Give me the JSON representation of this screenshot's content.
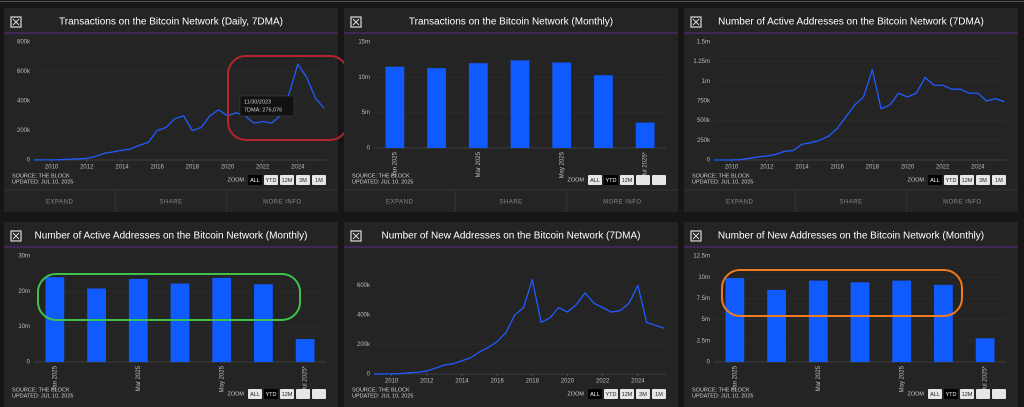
{
  "ui": {
    "source": "SOURCE: THE BLOCK",
    "updated": "UPDATED: JUL 10, 2025",
    "zoom": "ZOOM",
    "buttons": [
      "ALL",
      "YTD",
      "12M",
      "3M",
      "1M"
    ],
    "footer": [
      "EXPAND",
      "SHARE",
      "MORE INFO"
    ]
  },
  "chart_data": [
    {
      "type": "line",
      "title": "Transactions on the Bitcoin Network (Daily, 7DMA)",
      "color": "#1f5cff",
      "x": [
        2009,
        2009.5,
        2010,
        2010.5,
        2011,
        2011.5,
        2012,
        2012.5,
        2013,
        2013.5,
        2014,
        2014.5,
        2015,
        2015.5,
        2016,
        2016.5,
        2017,
        2017.5,
        2018,
        2018.5,
        2019,
        2019.5,
        2020,
        2020.5,
        2021,
        2021.5,
        2022,
        2022.5,
        2023,
        2023.5,
        2024,
        2024.5,
        2025,
        2025.5
      ],
      "values": [
        500,
        1000,
        1000,
        2000,
        5000,
        8000,
        10000,
        25000,
        45000,
        55000,
        65000,
        75000,
        100000,
        120000,
        200000,
        220000,
        280000,
        300000,
        200000,
        220000,
        300000,
        340000,
        300000,
        320000,
        300000,
        250000,
        260000,
        250000,
        300000,
        450000,
        650000,
        560000,
        420000,
        350000
      ],
      "xlim": [
        2009,
        2025.6
      ],
      "xticks": [
        2010,
        2012,
        2014,
        2016,
        2018,
        2020,
        2022,
        2024
      ],
      "ylim": [
        0,
        800000
      ],
      "yticks": [
        0,
        {
          "value": 200000,
          "label": "200k"
        },
        {
          "value": 400000,
          "label": "400k"
        },
        {
          "value": 600000,
          "label": "600k"
        },
        {
          "value": 800000,
          "label": "800k"
        }
      ],
      "annotations": [
        "11/30/2023",
        "7DMA: 276,076"
      ]
    },
    {
      "type": "bar",
      "title": "Transactions on the Bitcoin Network (Monthly)",
      "color": "#0f5bff",
      "categories": [
        "Jan 2025",
        null,
        "Mar 2025",
        null,
        "May 2025",
        null,
        "Jul 2025*"
      ],
      "values": [
        11500000,
        11300000,
        12000000,
        12400000,
        12100000,
        10300000,
        3600000
      ],
      "ylim": [
        0,
        15000000
      ],
      "yticks": [
        0,
        {
          "value": 5000000,
          "label": "5m"
        },
        {
          "value": 10000000,
          "label": "10m"
        },
        {
          "value": 15000000,
          "label": "15m"
        }
      ]
    },
    {
      "type": "line",
      "title": "Number of Active Addresses on the Bitcoin Network (7DMA)",
      "color": "#1f5cff",
      "x": [
        2009,
        2009.5,
        2010,
        2010.5,
        2011,
        2011.5,
        2012,
        2012.5,
        2013,
        2013.5,
        2014,
        2014.5,
        2015,
        2015.5,
        2016,
        2016.5,
        2017,
        2017.5,
        2018,
        2018.5,
        2019,
        2019.5,
        2020,
        2020.5,
        2021,
        2021.5,
        2022,
        2022.5,
        2023,
        2023.5,
        2024,
        2024.5,
        2025,
        2025.5
      ],
      "values": [
        0,
        0,
        1000,
        5000,
        20000,
        40000,
        50000,
        70000,
        110000,
        120000,
        200000,
        220000,
        250000,
        300000,
        400000,
        550000,
        700000,
        800000,
        1150000,
        650000,
        700000,
        850000,
        800000,
        850000,
        1050000,
        950000,
        950000,
        900000,
        900000,
        850000,
        850000,
        750000,
        780000,
        740000
      ],
      "xlim": [
        2009,
        2025.6
      ],
      "xticks": [
        2010,
        2012,
        2014,
        2016,
        2018,
        2020,
        2022,
        2024
      ],
      "ylim": [
        0,
        1500000
      ],
      "yticks": [
        0,
        {
          "value": 250000,
          "label": "250k"
        },
        {
          "value": 500000,
          "label": "500k"
        },
        {
          "value": 750000,
          "label": "750k"
        },
        {
          "value": 1000000,
          "label": "1m"
        },
        {
          "value": 1250000,
          "label": "1.25m"
        },
        {
          "value": 1500000,
          "label": "1.5m"
        }
      ]
    },
    {
      "type": "bar",
      "title": "Number of Active Addresses on the Bitcoin Network (Monthly)",
      "color": "#0f5bff",
      "categories": [
        "Jan 2025",
        null,
        "Mar 2025",
        null,
        "May 2025",
        null,
        "Jul 2025*"
      ],
      "values": [
        24000000,
        20800000,
        23500000,
        22200000,
        23800000,
        22000000,
        6500000
      ],
      "ylim": [
        0,
        30000000
      ],
      "yticks": [
        0,
        {
          "value": 10000000,
          "label": "10m"
        },
        {
          "value": 20000000,
          "label": "20m"
        },
        {
          "value": 30000000,
          "label": "30m"
        }
      ]
    },
    {
      "type": "line",
      "title": "Number of New Addresses on the Bitcoin Network (7DMA)",
      "color": "#1f5cff",
      "x": [
        2009,
        2009.5,
        2010,
        2010.5,
        2011,
        2011.5,
        2012,
        2012.5,
        2013,
        2013.5,
        2014,
        2014.5,
        2015,
        2015.5,
        2016,
        2016.5,
        2017,
        2017.5,
        2018,
        2018.5,
        2019,
        2019.5,
        2020,
        2020.5,
        2021,
        2021.5,
        2022,
        2022.5,
        2023,
        2023.5,
        2024,
        2024.5,
        2025,
        2025.5
      ],
      "values": [
        0,
        0,
        1000,
        3000,
        8000,
        12000,
        20000,
        40000,
        60000,
        70000,
        90000,
        110000,
        150000,
        180000,
        220000,
        280000,
        400000,
        450000,
        640000,
        350000,
        380000,
        450000,
        420000,
        470000,
        550000,
        480000,
        450000,
        420000,
        430000,
        480000,
        600000,
        350000,
        330000,
        310000
      ],
      "xlim": [
        2009,
        2025.6
      ],
      "xticks": [
        2010,
        2012,
        2014,
        2016,
        2018,
        2020,
        2022,
        2024
      ],
      "ylim": [
        0,
        800000
      ],
      "yticks": [
        0,
        {
          "value": 200000,
          "label": "200k"
        },
        {
          "value": 400000,
          "label": "400k"
        },
        {
          "value": 600000,
          "label": "600k"
        }
      ]
    },
    {
      "type": "bar",
      "title": "Number of New Addresses on the Bitcoin Network (Monthly)",
      "color": "#0f5bff",
      "categories": [
        "Jan 2025",
        null,
        "Mar 2025",
        null,
        "May 2025",
        null,
        "Jul 2025*"
      ],
      "values": [
        9900000,
        8500000,
        9600000,
        9400000,
        9600000,
        9100000,
        2800000
      ],
      "ylim": [
        0,
        12500000
      ],
      "yticks": [
        0,
        {
          "value": 2500000,
          "label": "2.5m"
        },
        {
          "value": 5000000,
          "label": "5m"
        },
        {
          "value": 7500000,
          "label": "7.5m"
        },
        {
          "value": 10000000,
          "label": "10m"
        },
        {
          "value": 12500000,
          "label": "12.5m"
        }
      ]
    }
  ]
}
